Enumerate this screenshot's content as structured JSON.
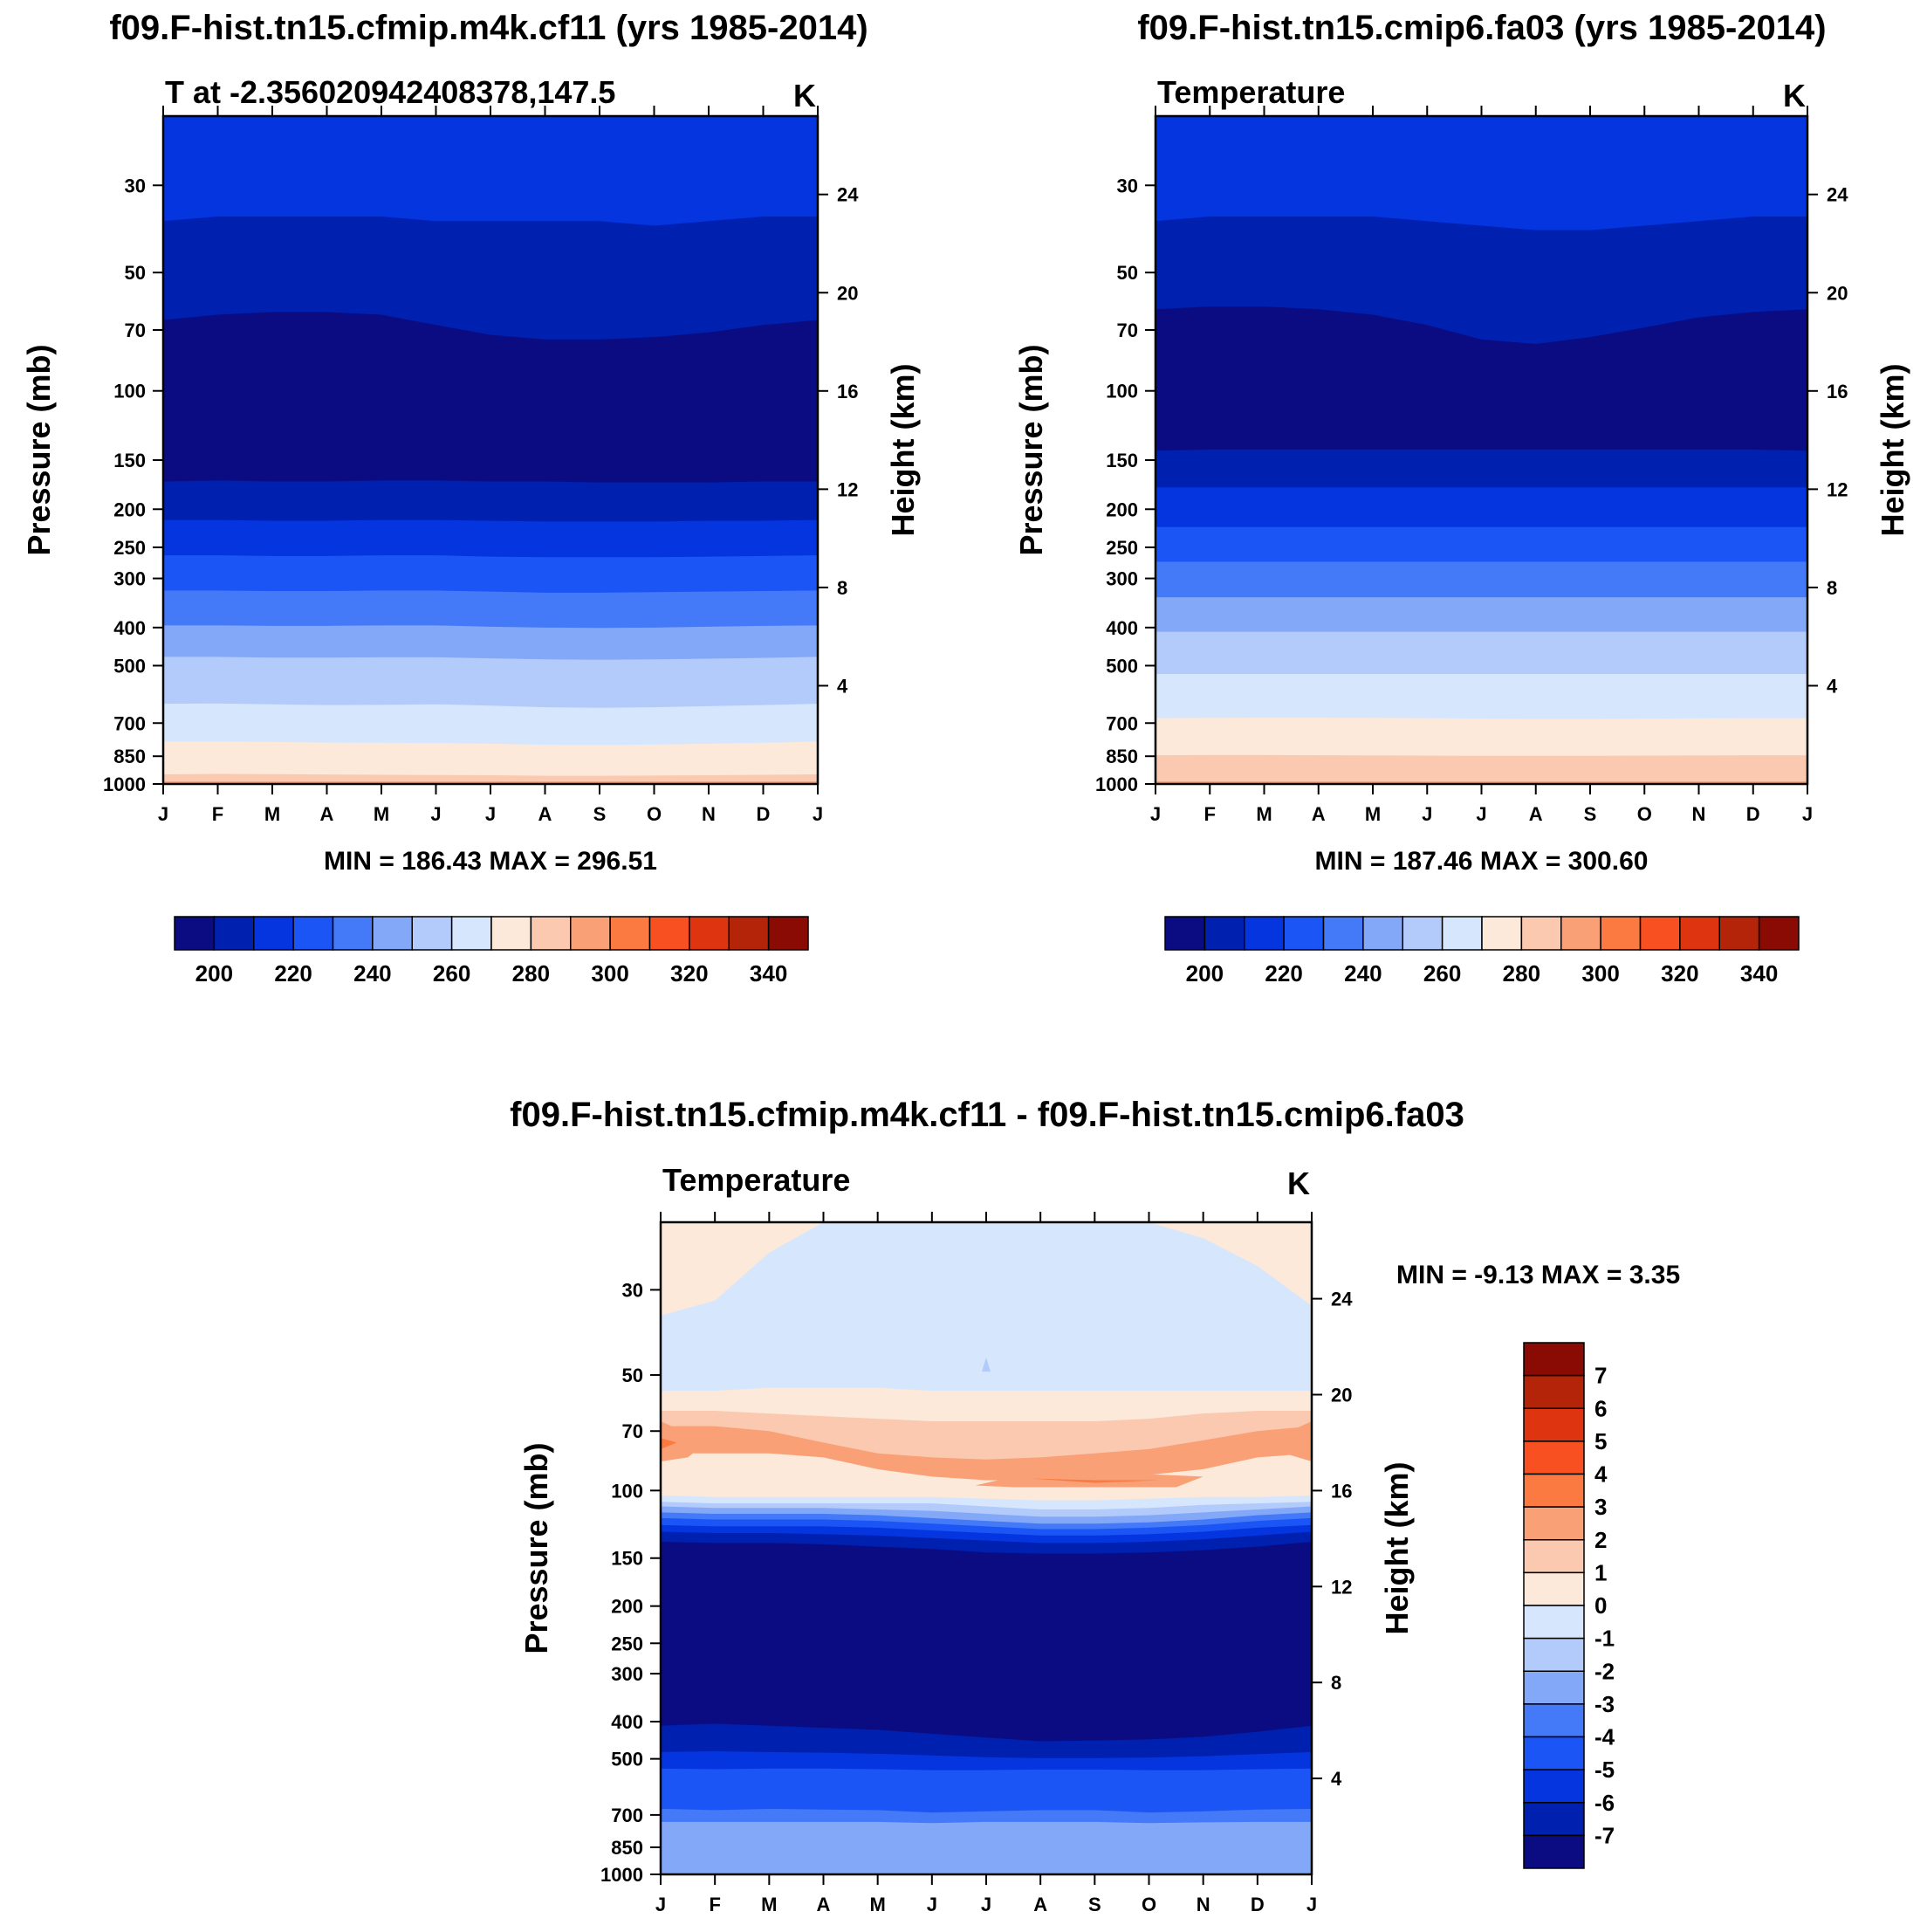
{
  "colors": {
    "temp_palette": [
      "#0b0c82",
      "#0020b0",
      "#0435df",
      "#1b55f5",
      "#4479f7",
      "#84a8f8",
      "#b3cbfb",
      "#d6e7fd",
      "#fde9d9",
      "#fbc8b0",
      "#f9a077",
      "#fa7a42",
      "#f85020",
      "#de3410",
      "#b32408",
      "#8a0a04"
    ],
    "diff_palette": [
      "#0b0c82",
      "#0020b0",
      "#0435df",
      "#1b55f5",
      "#4479f7",
      "#84a8f8",
      "#b3cbfb",
      "#d6e7fd",
      "#fde9d9",
      "#fbc8b0",
      "#f9a077",
      "#fa7a42",
      "#f85020",
      "#de3410",
      "#b32408",
      "#8a0a04"
    ]
  },
  "chart_data": [
    {
      "type": "contour",
      "title": "f09.F-hist.tn15.cfmip.m4k.cf11 (yrs 1985-2014)",
      "subtitle_left": "T at -2.356020942408378,147.5",
      "units": "K",
      "ylabel": "Pressure (mb)",
      "ylabel_right": "Height (km)",
      "xticks": [
        "J",
        "F",
        "M",
        "A",
        "M",
        "J",
        "J",
        "A",
        "S",
        "O",
        "N",
        "D",
        "J"
      ],
      "yticks": [
        "30",
        "50",
        "70",
        "100",
        "150",
        "200",
        "250",
        "300",
        "400",
        "500",
        "700",
        "850",
        "1000"
      ],
      "yticks_values": [
        30,
        50,
        70,
        100,
        150,
        200,
        250,
        300,
        400,
        500,
        700,
        850,
        1000
      ],
      "ylim": [
        1000,
        20
      ],
      "height_ticks": [
        "24",
        "20",
        "16",
        "12",
        "8",
        "4"
      ],
      "height_values": [
        24,
        20,
        16,
        12,
        8,
        4
      ],
      "stats": "MIN = 186.43 MAX = 296.51",
      "colorbar_ticks": [
        "200",
        "220",
        "240",
        "260",
        "280",
        "300",
        "320",
        "340"
      ],
      "levels": [
        190,
        200,
        210,
        220,
        230,
        240,
        250,
        260,
        270,
        280,
        290,
        300,
        310,
        320,
        330,
        340,
        350
      ],
      "boundaries": [
        {
          "from": 2,
          "to": 1,
          "p": [
            37,
            36,
            36,
            36,
            36,
            37,
            37,
            37,
            37,
            38,
            37,
            36,
            36
          ]
        },
        {
          "from": 1,
          "to": 0,
          "p": [
            66,
            64,
            63,
            63,
            64,
            68,
            72,
            74,
            74,
            73,
            71,
            68,
            66
          ]
        },
        {
          "from": 0,
          "to": 1,
          "p": [
            170,
            169,
            170,
            170,
            169,
            169,
            170,
            170,
            171,
            171,
            171,
            170,
            170
          ]
        },
        {
          "from": 1,
          "to": 2,
          "p": [
            213,
            213,
            214,
            214,
            213,
            213,
            214,
            215,
            215,
            215,
            214,
            214,
            213
          ]
        },
        {
          "from": 2,
          "to": 3,
          "p": [
            262,
            262,
            263,
            263,
            262,
            262,
            264,
            265,
            265,
            265,
            264,
            263,
            262
          ]
        },
        {
          "from": 3,
          "to": 4,
          "p": [
            322,
            322,
            323,
            323,
            322,
            322,
            324,
            326,
            326,
            325,
            324,
            323,
            322
          ]
        },
        {
          "from": 4,
          "to": 5,
          "p": [
            395,
            395,
            396,
            396,
            395,
            395,
            398,
            400,
            401,
            400,
            398,
            396,
            395
          ]
        },
        {
          "from": 5,
          "to": 6,
          "p": [
            475,
            475,
            477,
            477,
            476,
            476,
            479,
            482,
            483,
            482,
            480,
            478,
            475
          ]
        },
        {
          "from": 6,
          "to": 7,
          "p": [
            625,
            624,
            627,
            630,
            629,
            627,
            632,
            638,
            640,
            638,
            634,
            630,
            625
          ]
        },
        {
          "from": 7,
          "to": 8,
          "p": [
            780,
            780,
            782,
            785,
            786,
            787,
            790,
            795,
            796,
            794,
            790,
            786,
            780
          ]
        },
        {
          "from": 8,
          "to": 9,
          "p": [
            945,
            943,
            944,
            946,
            948,
            949,
            950,
            953,
            953,
            952,
            950,
            948,
            945
          ]
        },
        {
          "from": 9,
          "to": 10,
          "p": [
            985,
            985,
            985,
            985,
            985,
            985,
            985,
            985,
            985,
            985,
            985,
            985,
            985
          ]
        }
      ],
      "top_class": 2
    },
    {
      "type": "contour",
      "title": "f09.F-hist.tn15.cmip6.fa03 (yrs 1985-2014)",
      "subtitle_left": "Temperature",
      "units": "K",
      "ylabel": "Pressure (mb)",
      "ylabel_right": "Height (km)",
      "xticks": [
        "J",
        "F",
        "M",
        "A",
        "M",
        "J",
        "J",
        "A",
        "S",
        "O",
        "N",
        "D",
        "J"
      ],
      "yticks": [
        "30",
        "50",
        "70",
        "100",
        "150",
        "200",
        "250",
        "300",
        "400",
        "500",
        "700",
        "850",
        "1000"
      ],
      "yticks_values": [
        30,
        50,
        70,
        100,
        150,
        200,
        250,
        300,
        400,
        500,
        700,
        850,
        1000
      ],
      "ylim": [
        1000,
        20
      ],
      "height_ticks": [
        "24",
        "20",
        "16",
        "12",
        "8",
        "4"
      ],
      "height_values": [
        24,
        20,
        16,
        12,
        8,
        4
      ],
      "stats": "MIN = 187.46 MAX = 300.60",
      "colorbar_ticks": [
        "200",
        "220",
        "240",
        "260",
        "280",
        "300",
        "320",
        "340"
      ],
      "levels": [
        190,
        200,
        210,
        220,
        230,
        240,
        250,
        260,
        270,
        280,
        290,
        300,
        310,
        320,
        330,
        340,
        350
      ],
      "boundaries": [
        {
          "from": 2,
          "to": 1,
          "p": [
            37,
            36,
            36,
            36,
            36,
            37,
            38,
            39,
            39,
            38,
            37,
            36,
            36
          ]
        },
        {
          "from": 1,
          "to": 0,
          "p": [
            62,
            61,
            61,
            62,
            64,
            68,
            74,
            76,
            73,
            69,
            65,
            63,
            62
          ]
        },
        {
          "from": 0,
          "to": 1,
          "p": [
            142,
            141,
            141,
            141,
            141,
            141,
            141,
            141,
            141,
            141,
            141,
            141,
            142
          ]
        },
        {
          "from": 1,
          "to": 2,
          "p": [
            176,
            176,
            176,
            176,
            176,
            176,
            176,
            176,
            176,
            176,
            176,
            176,
            176
          ]
        },
        {
          "from": 2,
          "to": 3,
          "p": [
            222,
            222,
            222,
            222,
            222,
            222,
            222,
            222,
            222,
            222,
            222,
            222,
            222
          ]
        },
        {
          "from": 3,
          "to": 4,
          "p": [
            272,
            272,
            272,
            272,
            272,
            272,
            272,
            272,
            272,
            272,
            272,
            272,
            272
          ]
        },
        {
          "from": 4,
          "to": 5,
          "p": [
            335,
            335,
            335,
            335,
            335,
            335,
            335,
            335,
            335,
            335,
            335,
            335,
            335
          ]
        },
        {
          "from": 5,
          "to": 6,
          "p": [
            410,
            410,
            410,
            410,
            410,
            410,
            410,
            410,
            410,
            410,
            410,
            410,
            410
          ]
        },
        {
          "from": 6,
          "to": 7,
          "p": [
            525,
            525,
            525,
            525,
            525,
            525,
            525,
            525,
            525,
            525,
            525,
            525,
            525
          ]
        },
        {
          "from": 7,
          "to": 8,
          "p": [
            680,
            679,
            678,
            678,
            679,
            680,
            682,
            683,
            683,
            682,
            681,
            680,
            680
          ]
        },
        {
          "from": 8,
          "to": 9,
          "p": [
            845,
            844,
            844,
            845,
            846,
            847,
            848,
            848,
            848,
            847,
            846,
            845,
            845
          ]
        },
        {
          "from": 9,
          "to": 10,
          "p": [
            985,
            985,
            985,
            985,
            985,
            985,
            985,
            985,
            985,
            985,
            985,
            985,
            985
          ]
        }
      ],
      "top_class": 2
    },
    {
      "type": "contour",
      "title": "f09.F-hist.tn15.cfmip.m4k.cf11 - f09.F-hist.tn15.cmip6.fa03",
      "subtitle_left": "Temperature",
      "units": "K",
      "ylabel": "Pressure (mb)",
      "ylabel_right": "Height (km)",
      "xticks": [
        "J",
        "F",
        "M",
        "A",
        "M",
        "J",
        "J",
        "A",
        "S",
        "O",
        "N",
        "D",
        "J"
      ],
      "yticks": [
        "30",
        "50",
        "70",
        "100",
        "150",
        "200",
        "250",
        "300",
        "400",
        "500",
        "700",
        "850",
        "1000"
      ],
      "yticks_values": [
        30,
        50,
        70,
        100,
        150,
        200,
        250,
        300,
        400,
        500,
        700,
        850,
        1000
      ],
      "ylim": [
        1000,
        20
      ],
      "height_ticks": [
        "24",
        "20",
        "16",
        "12",
        "8",
        "4"
      ],
      "height_values": [
        24,
        20,
        16,
        12,
        8,
        4
      ],
      "stats": "MIN =  -9.13 MAX =   3.35",
      "colorbar_ticks": [
        "7",
        "6",
        "5",
        "4",
        "3",
        "2",
        "1",
        "0",
        "-1",
        "-2",
        "-3",
        "-4",
        "-5",
        "-6",
        "-7"
      ],
      "levels": [
        -8,
        -7,
        -6,
        -5,
        -4,
        -3,
        -2,
        -1,
        0,
        1,
        2,
        3,
        4,
        5,
        6,
        7,
        8
      ],
      "boundaries": [
        {
          "from": 8,
          "to": 7,
          "p": [
            35,
            32,
            24,
            20,
            20,
            20,
            20,
            20,
            20,
            20,
            22,
            26,
            33
          ]
        },
        {
          "from": 7,
          "to": 8,
          "p": [
            55,
            55,
            54,
            54,
            54,
            55,
            55,
            55,
            55,
            55,
            55,
            55,
            55
          ]
        },
        {
          "from": 8,
          "to": 9,
          "p": [
            62,
            62,
            63,
            64,
            65,
            66,
            66,
            66,
            66,
            65,
            63,
            62,
            62
          ]
        },
        {
          "from": 9,
          "to": 10,
          "p": [
            68,
            68,
            70,
            75,
            80,
            82,
            83,
            82,
            80,
            78,
            74,
            70,
            68
          ]
        },
        {
          "from": 10,
          "to": 8,
          "p": [
            80,
            80,
            80,
            82,
            88,
            92,
            94,
            94,
            93,
            91,
            88,
            82,
            80
          ]
        },
        {
          "from": 8,
          "to": 7,
          "p": [
            103,
            104,
            104,
            104,
            104,
            104,
            105,
            106,
            106,
            105,
            104,
            104,
            103
          ]
        },
        {
          "from": 7,
          "to": 6,
          "p": [
            107,
            108,
            108,
            108,
            108,
            108,
            110,
            112,
            112,
            111,
            109,
            108,
            107
          ]
        },
        {
          "from": 6,
          "to": 5,
          "p": [
            110,
            111,
            111,
            111,
            112,
            113,
            115,
            117,
            117,
            116,
            114,
            112,
            110
          ]
        },
        {
          "from": 5,
          "to": 4,
          "p": [
            114,
            115,
            115,
            115,
            116,
            118,
            120,
            122,
            122,
            121,
            119,
            116,
            114
          ]
        },
        {
          "from": 4,
          "to": 3,
          "p": [
            118,
            119,
            119,
            119,
            120,
            122,
            124,
            126,
            126,
            125,
            123,
            120,
            118
          ]
        },
        {
          "from": 3,
          "to": 2,
          "p": [
            123,
            124,
            124,
            124,
            125,
            127,
            129,
            131,
            131,
            130,
            128,
            125,
            123
          ]
        },
        {
          "from": 2,
          "to": 1,
          "p": [
            128,
            129,
            129,
            130,
            131,
            133,
            135,
            137,
            137,
            136,
            134,
            131,
            128
          ]
        },
        {
          "from": 1,
          "to": 0,
          "p": [
            136,
            137,
            137,
            138,
            140,
            142,
            145,
            146,
            146,
            145,
            143,
            140,
            136
          ]
        },
        {
          "from": 0,
          "to": 1,
          "p": [
            410,
            405,
            410,
            415,
            420,
            430,
            440,
            450,
            448,
            445,
            438,
            425,
            410
          ]
        },
        {
          "from": 1,
          "to": 2,
          "p": [
            480,
            478,
            480,
            482,
            485,
            490,
            495,
            498,
            498,
            496,
            492,
            486,
            480
          ]
        },
        {
          "from": 2,
          "to": 3,
          "p": [
            530,
            532,
            530,
            530,
            532,
            535,
            535,
            533,
            533,
            535,
            535,
            532,
            530
          ]
        },
        {
          "from": 3,
          "to": 4,
          "p": [
            675,
            680,
            675,
            678,
            680,
            690,
            685,
            680,
            680,
            690,
            685,
            678,
            675
          ]
        },
        {
          "from": 4,
          "to": 5,
          "p": [
            730,
            730,
            730,
            730,
            730,
            735,
            730,
            730,
            730,
            735,
            732,
            730,
            730
          ]
        }
      ],
      "top_class": 8
    }
  ]
}
